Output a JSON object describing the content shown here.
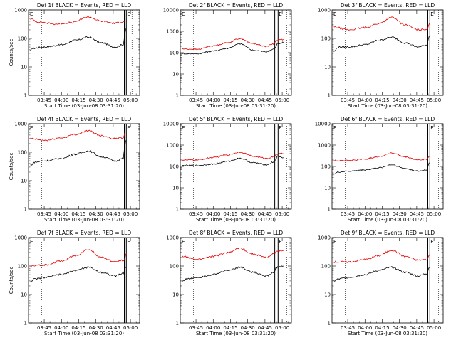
{
  "chart_data": [
    {
      "type": "line",
      "title": "Det 1f BLACK = Events, RED = LLD",
      "xlabel": "Start Time (03-Jun-08 03:31:20)",
      "ylabel": "Counts/sec",
      "yscale": "log",
      "ylim": [
        1,
        1000
      ],
      "xlim": [
        204,
        3540
      ],
      "x_tick_labels": [
        "03:45",
        "04:00",
        "04:15",
        "04:30",
        "04:45",
        "05:00"
      ],
      "y_tick_labels": [
        "1",
        "10",
        "100",
        "1000"
      ],
      "series": [
        {
          "color": "#000000",
          "points": [
            [
              260,
              35
            ],
            [
              300,
              45
            ],
            [
              700,
              50
            ],
            [
              1200,
              60
            ],
            [
              1600,
              85
            ],
            [
              2000,
              110
            ],
            [
              2400,
              70
            ],
            [
              2800,
              50
            ],
            [
              3050,
              60
            ],
            [
              3090,
              130
            ],
            [
              3120,
              220
            ]
          ]
        },
        {
          "color": "#e00000",
          "points": [
            [
              260,
              480
            ],
            [
              500,
              380
            ],
            [
              1000,
              320
            ],
            [
              1500,
              360
            ],
            [
              2000,
              560
            ],
            [
              2400,
              400
            ],
            [
              2800,
              340
            ],
            [
              3000,
              380
            ],
            [
              3090,
              400
            ]
          ]
        }
      ],
      "vlines_dotted": [
        596,
        3310
      ],
      "vlines_solid": [
        3080,
        3140
      ],
      "marker_label": "E"
    },
    {
      "type": "line",
      "title": "Det 2f BLACK = Events, RED = LLD",
      "xlabel": "Start Time (03-Jun-08 03:31:20)",
      "ylabel": "",
      "yscale": "log",
      "ylim": [
        1,
        10000
      ],
      "xlim": [
        204,
        3540
      ],
      "x_tick_labels": [
        "03:45",
        "04:00",
        "04:15",
        "04:30",
        "04:45",
        "05:00"
      ],
      "y_tick_labels": [
        "1",
        "10",
        "100",
        "1000",
        "10000"
      ],
      "series": [
        {
          "color": "#000000",
          "points": [
            [
              260,
              90
            ],
            [
              700,
              90
            ],
            [
              1200,
              120
            ],
            [
              1600,
              160
            ],
            [
              2000,
              260
            ],
            [
              2400,
              130
            ],
            [
              2800,
              110
            ],
            [
              3020,
              150
            ],
            [
              3080,
              200
            ],
            [
              3120,
              270
            ],
            [
              3300,
              300
            ]
          ]
        },
        {
          "color": "#e00000",
          "points": [
            [
              260,
              150
            ],
            [
              700,
              145
            ],
            [
              1200,
              210
            ],
            [
              1600,
              290
            ],
            [
              2000,
              460
            ],
            [
              2400,
              260
            ],
            [
              2800,
              200
            ],
            [
              3000,
              260
            ],
            [
              3100,
              390
            ],
            [
              3300,
              420
            ]
          ]
        }
      ],
      "vlines_dotted": [
        596,
        3400
      ],
      "vlines_solid": [
        3040,
        3140
      ],
      "marker_label": "E"
    },
    {
      "type": "line",
      "title": "Det 3f BLACK = Events, RED = LLD",
      "xlabel": "Start Time (03-Jun-08 03:31:20)",
      "ylabel": "",
      "yscale": "log",
      "ylim": [
        1,
        1000
      ],
      "xlim": [
        204,
        3540
      ],
      "x_tick_labels": [
        "03:45",
        "04:00",
        "04:15",
        "04:30",
        "04:45",
        "05:00"
      ],
      "y_tick_labels": [
        "1",
        "10",
        "100",
        "1000"
      ],
      "series": [
        {
          "color": "#000000",
          "points": [
            [
              260,
              35
            ],
            [
              400,
              50
            ],
            [
              700,
              50
            ],
            [
              1200,
              60
            ],
            [
              1600,
              85
            ],
            [
              2000,
              110
            ],
            [
              2400,
              70
            ],
            [
              2800,
              50
            ],
            [
              3050,
              60
            ],
            [
              3120,
              120
            ]
          ]
        },
        {
          "color": "#e00000",
          "points": [
            [
              260,
              250
            ],
            [
              700,
              200
            ],
            [
              1200,
              240
            ],
            [
              1600,
              330
            ],
            [
              2000,
              540
            ],
            [
              2400,
              300
            ],
            [
              2800,
              200
            ],
            [
              3050,
              210
            ],
            [
              3150,
              370
            ]
          ]
        }
      ],
      "vlines_dotted": [
        596,
        3400
      ],
      "vlines_solid": [
        3080,
        3140
      ],
      "marker_label": "E"
    },
    {
      "type": "line",
      "title": "Det 4f BLACK = Events, RED = LLD",
      "xlabel": "Start Time (03-Jun-08 03:31:20)",
      "ylabel": "Counts/sec",
      "yscale": "log",
      "ylim": [
        1,
        1000
      ],
      "xlim": [
        204,
        3540
      ],
      "x_tick_labels": [
        "03:45",
        "04:00",
        "04:15",
        "04:30",
        "04:45",
        "05:00"
      ],
      "y_tick_labels": [
        "1",
        "10",
        "100",
        "1000"
      ],
      "series": [
        {
          "color": "#000000",
          "points": [
            [
              260,
              35
            ],
            [
              400,
              45
            ],
            [
              700,
              50
            ],
            [
              1200,
              60
            ],
            [
              1600,
              85
            ],
            [
              2000,
              110
            ],
            [
              2400,
              70
            ],
            [
              2800,
              50
            ],
            [
              3050,
              60
            ],
            [
              3090,
              150
            ],
            [
              3120,
              260
            ]
          ]
        },
        {
          "color": "#e00000",
          "points": [
            [
              260,
              300
            ],
            [
              700,
              260
            ],
            [
              1200,
              320
            ],
            [
              1600,
              420
            ],
            [
              2000,
              560
            ],
            [
              2400,
              380
            ],
            [
              2800,
              300
            ],
            [
              3050,
              330
            ],
            [
              3100,
              500
            ]
          ]
        }
      ],
      "vlines_dotted": [
        596,
        3400
      ],
      "vlines_solid": [
        3080,
        3140
      ],
      "marker_label": "E"
    },
    {
      "type": "line",
      "title": "Det 5f BLACK = Events, RED = LLD",
      "xlabel": "Start Time (03-Jun-08 03:31:20)",
      "ylabel": "",
      "yscale": "log",
      "ylim": [
        1,
        10000
      ],
      "xlim": [
        204,
        3540
      ],
      "x_tick_labels": [
        "03:45",
        "04:00",
        "04:15",
        "04:30",
        "04:45",
        "05:00"
      ],
      "y_tick_labels": [
        "1",
        "10",
        "100",
        "1000",
        "10000"
      ],
      "series": [
        {
          "color": "#000000",
          "points": [
            [
              260,
              110
            ],
            [
              700,
              110
            ],
            [
              1200,
              130
            ],
            [
              1600,
              170
            ],
            [
              2000,
              240
            ],
            [
              2400,
              150
            ],
            [
              2800,
              120
            ],
            [
              3000,
              160
            ],
            [
              3080,
              220
            ],
            [
              3120,
              300
            ],
            [
              3300,
              260
            ]
          ]
        },
        {
          "color": "#e00000",
          "points": [
            [
              260,
              200
            ],
            [
              700,
              200
            ],
            [
              1200,
              260
            ],
            [
              1600,
              340
            ],
            [
              2000,
              470
            ],
            [
              2400,
              300
            ],
            [
              2800,
              240
            ],
            [
              3000,
              280
            ],
            [
              3100,
              380
            ],
            [
              3300,
              400
            ]
          ]
        }
      ],
      "vlines_dotted": [
        596,
        3400
      ],
      "vlines_solid": [
        3040,
        3140
      ],
      "marker_label": "E"
    },
    {
      "type": "line",
      "title": "Det 6f BLACK = Events, RED = LLD",
      "xlabel": "Start Time (03-Jun-08 03:31:20)",
      "ylabel": "",
      "yscale": "log",
      "ylim": [
        1,
        10000
      ],
      "xlim": [
        204,
        3540
      ],
      "x_tick_labels": [
        "03:45",
        "04:00",
        "04:15",
        "04:30",
        "04:45",
        "05:00"
      ],
      "y_tick_labels": [
        "1",
        "10",
        "100",
        "1000",
        "10000"
      ],
      "series": [
        {
          "color": "#000000",
          "points": [
            [
              260,
              45
            ],
            [
              400,
              55
            ],
            [
              700,
              60
            ],
            [
              1200,
              70
            ],
            [
              1600,
              85
            ],
            [
              2000,
              120
            ],
            [
              2400,
              80
            ],
            [
              2800,
              60
            ],
            [
              3050,
              70
            ],
            [
              3120,
              150
            ]
          ]
        },
        {
          "color": "#e00000",
          "points": [
            [
              260,
              190
            ],
            [
              700,
              190
            ],
            [
              1200,
              220
            ],
            [
              1600,
              290
            ],
            [
              2000,
              420
            ],
            [
              2400,
              280
            ],
            [
              2800,
              200
            ],
            [
              3050,
              220
            ],
            [
              3150,
              320
            ]
          ]
        }
      ],
      "vlines_dotted": [
        596,
        3400
      ],
      "vlines_solid": [
        3080,
        3140
      ],
      "marker_label": "E"
    },
    {
      "type": "line",
      "title": "Det 7f BLACK = Events, RED = LLD",
      "xlabel": "Start Time (03-Jun-08 03:31:20)",
      "ylabel": "Counts/sec",
      "yscale": "log",
      "ylim": [
        1,
        1000
      ],
      "xlim": [
        204,
        3540
      ],
      "x_tick_labels": [
        "03:45",
        "04:00",
        "04:15",
        "04:30",
        "04:45",
        "05:00"
      ],
      "y_tick_labels": [
        "1",
        "10",
        "100",
        "1000"
      ],
      "series": [
        {
          "color": "#000000",
          "points": [
            [
              260,
              30
            ],
            [
              400,
              35
            ],
            [
              700,
              40
            ],
            [
              1200,
              50
            ],
            [
              1600,
              70
            ],
            [
              2000,
              90
            ],
            [
              2400,
              60
            ],
            [
              2800,
              45
            ],
            [
              3050,
              55
            ],
            [
              3120,
              90
            ]
          ]
        },
        {
          "color": "#e00000",
          "points": [
            [
              260,
              100
            ],
            [
              700,
              110
            ],
            [
              1200,
              150
            ],
            [
              1600,
              230
            ],
            [
              2000,
              380
            ],
            [
              2400,
              200
            ],
            [
              2800,
              140
            ],
            [
              3050,
              160
            ],
            [
              3150,
              270
            ]
          ]
        }
      ],
      "vlines_dotted": [
        596,
        3400
      ],
      "vlines_solid": [
        3080,
        3140
      ],
      "marker_label": "E"
    },
    {
      "type": "line",
      "title": "Det 8f BLACK = Events, RED = LLD",
      "xlabel": "Start Time (03-Jun-08 03:31:20)",
      "ylabel": "",
      "yscale": "log",
      "ylim": [
        1,
        1000
      ],
      "xlim": [
        204,
        3540
      ],
      "x_tick_labels": [
        "03:45",
        "04:00",
        "04:15",
        "04:30",
        "04:45",
        "05:00"
      ],
      "y_tick_labels": [
        "1",
        "10",
        "100",
        "1000"
      ],
      "series": [
        {
          "color": "#000000",
          "points": [
            [
              260,
              30
            ],
            [
              400,
              35
            ],
            [
              700,
              40
            ],
            [
              1200,
              50
            ],
            [
              1600,
              70
            ],
            [
              2000,
              90
            ],
            [
              2400,
              60
            ],
            [
              2800,
              45
            ],
            [
              3020,
              60
            ],
            [
              3080,
              90
            ],
            [
              3300,
              100
            ]
          ]
        },
        {
          "color": "#e00000",
          "points": [
            [
              260,
              220
            ],
            [
              700,
              170
            ],
            [
              1200,
              220
            ],
            [
              1600,
              290
            ],
            [
              2000,
              420
            ],
            [
              2400,
              260
            ],
            [
              2800,
              200
            ],
            [
              3000,
              260
            ],
            [
              3100,
              340
            ],
            [
              3300,
              350
            ]
          ]
        }
      ],
      "vlines_dotted": [
        596,
        3400
      ],
      "vlines_solid": [
        3040,
        3140
      ],
      "marker_label": "E"
    },
    {
      "type": "line",
      "title": "Det 9f BLACK = Events, RED = LLD",
      "xlabel": "Start Time (03-Jun-08 03:31:20)",
      "ylabel": "",
      "yscale": "log",
      "ylim": [
        1,
        1000
      ],
      "xlim": [
        204,
        3540
      ],
      "x_tick_labels": [
        "03:45",
        "04:00",
        "04:15",
        "04:30",
        "04:45",
        "05:00"
      ],
      "y_tick_labels": [
        "1",
        "10",
        "100",
        "1000"
      ],
      "series": [
        {
          "color": "#000000",
          "points": [
            [
              260,
              30
            ],
            [
              400,
              35
            ],
            [
              700,
              40
            ],
            [
              1200,
              50
            ],
            [
              1600,
              70
            ],
            [
              2000,
              90
            ],
            [
              2400,
              60
            ],
            [
              2800,
              45
            ],
            [
              3050,
              55
            ],
            [
              3120,
              90
            ]
          ]
        },
        {
          "color": "#e00000",
          "points": [
            [
              260,
              140
            ],
            [
              700,
              140
            ],
            [
              1200,
              170
            ],
            [
              1600,
              230
            ],
            [
              2000,
              360
            ],
            [
              2400,
              220
            ],
            [
              2800,
              160
            ],
            [
              3050,
              170
            ],
            [
              3150,
              260
            ]
          ]
        }
      ],
      "vlines_dotted": [
        596,
        3400
      ],
      "vlines_solid": [
        3080,
        3140
      ],
      "marker_label": "E"
    }
  ]
}
